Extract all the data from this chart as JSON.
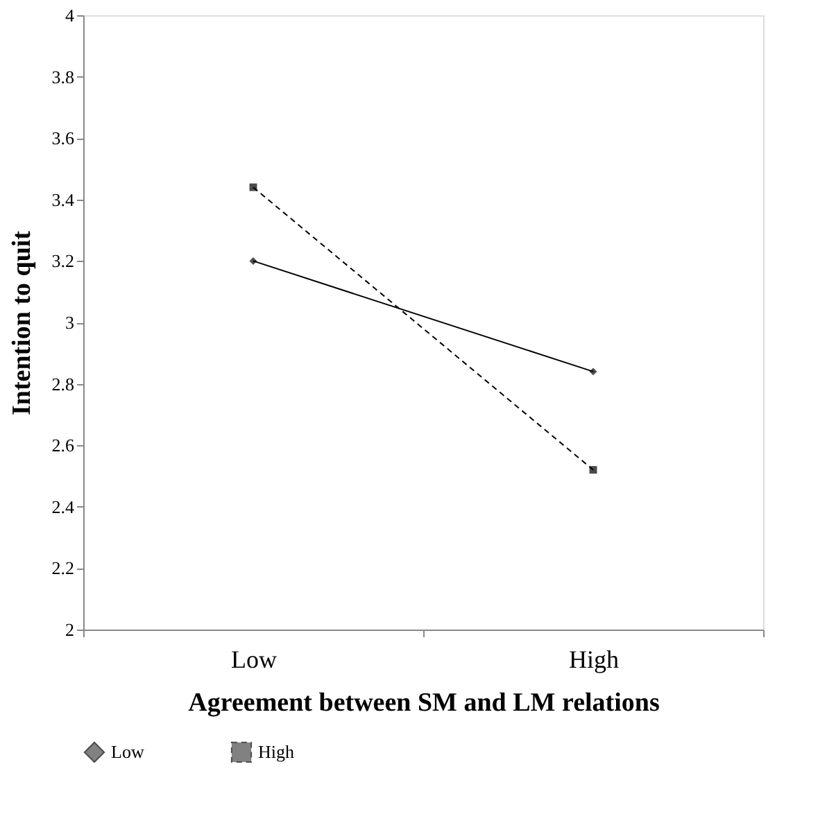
{
  "chart_data": {
    "type": "line",
    "xlabel": "Agreement between SM and LM relations",
    "ylabel": "Intention to quit",
    "categories": [
      "Low",
      "High"
    ],
    "series": [
      {
        "name": "Low",
        "color": "#000000",
        "values": [
          3.2,
          2.84
        ],
        "marker": "diamond",
        "line_style": "solid"
      },
      {
        "name": "High",
        "color": "#000000",
        "values": [
          3.44,
          2.52
        ],
        "marker": "square",
        "line_style": "dashed"
      }
    ],
    "ylim": [
      2,
      4
    ],
    "yticks": [
      2,
      2.2,
      2.4,
      2.6,
      2.8,
      3,
      3.2,
      3.4,
      3.6,
      3.8,
      4
    ],
    "grid": false,
    "legend": "bottom"
  }
}
